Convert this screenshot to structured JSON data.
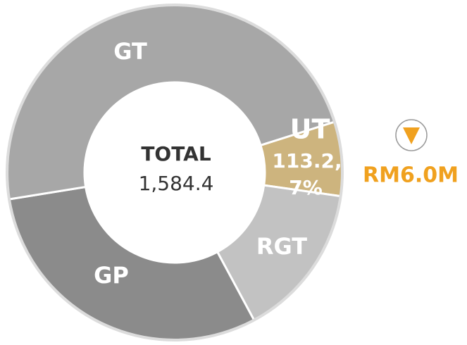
{
  "chart_data": {
    "type": "donut",
    "segments": [
      {
        "name": "UT",
        "value": 113.2,
        "value_label": "113.2,",
        "percent": 7,
        "percent_label": "7%",
        "color": "#cdb47e"
      },
      {
        "name": "RGT",
        "value": 236,
        "color": "#c2c2c2"
      },
      {
        "name": "GP",
        "value": 480,
        "color": "#8b8b8b"
      },
      {
        "name": "GT",
        "value": 755.2,
        "color": "#a7a7a7"
      }
    ],
    "total_title": "TOTAL",
    "total": {
      "value": 1584.4,
      "label": "1,584.4"
    },
    "change": {
      "direction": "down",
      "label": "RM6.0M",
      "color": "#f0a11f"
    }
  }
}
